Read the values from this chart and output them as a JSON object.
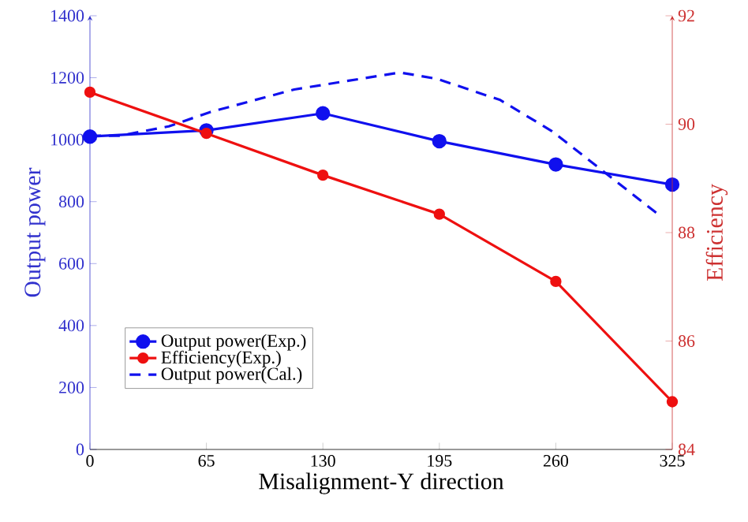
{
  "chart_data": {
    "type": "line",
    "xlabel": "Misalignment-Y direction",
    "ylabel": "Output power",
    "y2label": "Efficiency",
    "x": [
      0,
      65,
      130,
      195,
      260,
      325
    ],
    "xlim": [
      0,
      325
    ],
    "xticks": [
      0,
      65,
      130,
      195,
      260,
      325
    ],
    "ylim": [
      0,
      1400
    ],
    "yticks": [
      0,
      200,
      400,
      600,
      800,
      1000,
      1200,
      1400
    ],
    "y2lim": [
      84,
      92
    ],
    "y2ticks": [
      84,
      86,
      88,
      90,
      92
    ],
    "marker": "circle",
    "line_style": "solid",
    "legend": "left",
    "grid": false,
    "series": [
      {
        "name": "Output power(Exp.)",
        "color": "#1010ee",
        "values": [
          1010,
          1030,
          1085,
          995,
          920,
          855
        ]
      },
      {
        "name": "Efficiency(Exp.)",
        "color": "#ee1010",
        "axis": "y2",
        "values": [
          90.59,
          89.83,
          89.06,
          88.34,
          87.1,
          84.88
        ]
      },
      {
        "name": "Output power(Cal.)",
        "color": "#1010ee",
        "marker": "none",
        "line_style": "dashed",
        "x": [
          0,
          17,
          44,
          67,
          114,
          173,
          194,
          229,
          258,
          288,
          318
        ],
        "values": [
          1013,
          1013,
          1043,
          1089,
          1162,
          1217,
          1196,
          1128,
          1027,
          891,
          755
        ]
      }
    ]
  }
}
